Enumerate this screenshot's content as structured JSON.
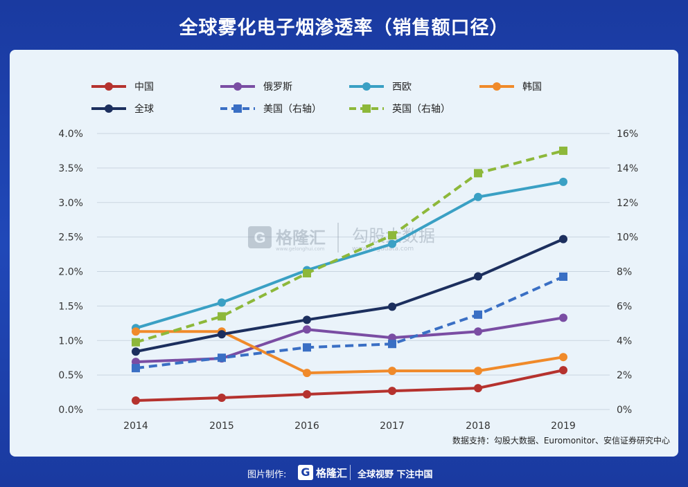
{
  "title": "全球雾化电子烟渗透率（销售额口径）",
  "source_note": "数据支持：勾股大数据、Euromonitor、安信证券研究中心",
  "watermark": {
    "brand": "格隆汇",
    "brand_url": "www.gelonghui.com",
    "data_brand": "勾股大数据",
    "data_url": "www.gogudata.com"
  },
  "footer": {
    "credit_label": "图片制作:",
    "logo_letter": "G",
    "brand": "格隆汇",
    "slogan": "全球视野 下注中国"
  },
  "chart_data": {
    "type": "line",
    "categories": [
      "2014",
      "2015",
      "2016",
      "2017",
      "2018",
      "2019"
    ],
    "y_left": {
      "ylim": [
        0,
        4.0
      ],
      "ticks": [
        "0.0%",
        "0.5%",
        "1.0%",
        "1.5%",
        "2.0%",
        "2.5%",
        "3.0%",
        "3.5%",
        "4.0%"
      ]
    },
    "y_right": {
      "ylim": [
        0,
        16
      ],
      "ticks": [
        "0%",
        "2%",
        "4%",
        "6%",
        "8%",
        "10%",
        "12%",
        "14%",
        "16%"
      ]
    },
    "grid": true,
    "legend_position": "top",
    "series": [
      {
        "name": "中国",
        "axis": "left",
        "style": "solid",
        "marker": "circle",
        "color": "#b5322e",
        "values": [
          0.13,
          0.17,
          0.22,
          0.27,
          0.31,
          0.57
        ]
      },
      {
        "name": "俄罗斯",
        "axis": "left",
        "style": "solid",
        "marker": "circle",
        "color": "#7a4da3",
        "values": [
          0.69,
          0.74,
          1.16,
          1.04,
          1.13,
          1.33
        ]
      },
      {
        "name": "西欧",
        "axis": "left",
        "style": "solid",
        "marker": "circle",
        "color": "#3aa0c4",
        "values": [
          1.18,
          1.55,
          2.02,
          2.4,
          3.08,
          3.3
        ]
      },
      {
        "name": "韩国",
        "axis": "left",
        "style": "solid",
        "marker": "circle",
        "color": "#f08a2a",
        "values": [
          1.13,
          1.13,
          0.53,
          0.56,
          0.56,
          0.76
        ]
      },
      {
        "name": "全球",
        "axis": "left",
        "style": "solid",
        "marker": "circle",
        "color": "#1c2f5e",
        "values": [
          0.84,
          1.09,
          1.3,
          1.49,
          1.93,
          2.47
        ]
      },
      {
        "name": "美国（右轴）",
        "axis": "right",
        "style": "dashed",
        "marker": "square",
        "color": "#3a6fc4",
        "values": [
          2.4,
          3.0,
          3.6,
          3.8,
          5.5,
          7.7
        ]
      },
      {
        "name": "英国（右轴）",
        "axis": "right",
        "style": "dashed",
        "marker": "square",
        "color": "#8db83a",
        "values": [
          3.9,
          5.4,
          7.9,
          10.1,
          13.7,
          15.0
        ]
      }
    ]
  }
}
